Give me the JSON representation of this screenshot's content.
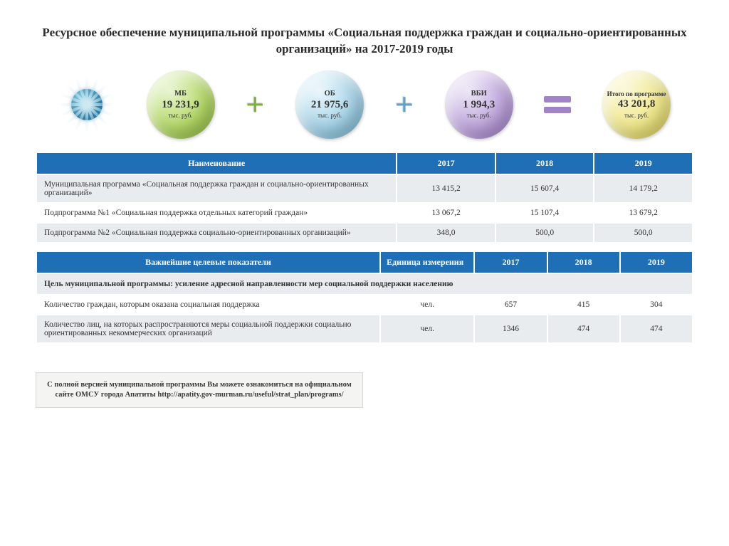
{
  "title": "Ресурсное обеспечение муниципальной программы «Социальная поддержка граждан и социально-ориентированных организаций» на 2017-2019 годы",
  "bubbles": {
    "mb": {
      "label": "МБ",
      "value": "19 231,9",
      "unit": "тыс. руб.",
      "fill": "radial-gradient(circle at 35% 30%, #e6f4cf, #b7da6a 55%, #8ab83a 95%)"
    },
    "ob": {
      "label": "ОБ",
      "value": "21 975,6",
      "unit": "тыс. руб.",
      "fill": "radial-gradient(circle at 35% 30%, #eaf6fb, #a9d6ea 55%, #6fb2cf 95%)"
    },
    "vbi": {
      "label": "ВБИ",
      "value": "1 994,3",
      "unit": "тыс. руб.",
      "fill": "radial-gradient(circle at 35% 30%, #ece6f6, #c2a9df 55%, #9a78c5 95%)"
    },
    "total": {
      "label": "Итого по программе",
      "value": "43 201,8",
      "unit": "тыс. руб.",
      "fill": "radial-gradient(circle at 35% 30%, #fbf7d6, #f1e98e 55%, #d9cd4f 95%)"
    }
  },
  "ops": {
    "plus1": "#7fb338",
    "plus2": "#5ea3c9",
    "eq": "#a183c8"
  },
  "table1": {
    "headers": [
      "Наименование",
      "2017",
      "2018",
      "2019"
    ],
    "rows": [
      {
        "cls": "row-a",
        "name": "Муниципальная программа «Социальная поддержка граждан и социально-ориентированных организаций»",
        "y1": "13 415,2",
        "y2": "15 607,4",
        "y3": "14 179,2"
      },
      {
        "cls": "row-b",
        "name": "Подпрограмма №1 «Социальная поддержка отдельных категорий граждан»",
        "y1": "13 067,2",
        "y2": "15 107,4",
        "y3": "13 679,2"
      },
      {
        "cls": "row-a",
        "name": "Подпрограмма №2 «Социальная поддержка социально-ориентированных организаций»",
        "y1": "348,0",
        "y2": "500,0",
        "y3": "500,0"
      }
    ]
  },
  "table2": {
    "headers": [
      "Важнейшие целевые показатели",
      "Единица измерения",
      "2017",
      "2018",
      "2019"
    ],
    "col_widths": [
      "48%",
      "13%",
      "10%",
      "10%",
      "10%"
    ],
    "goal": "Цель муниципальной программы: усиление адресной направленности мер социальной поддержки населению",
    "rows": [
      {
        "cls": "row-b",
        "name": "Количество граждан, которым оказана социальная поддержка",
        "unit": "чел.",
        "y1": "657",
        "y2": "415",
        "y3": "304"
      },
      {
        "cls": "row-a",
        "name": "Количество лиц, на которых распространяются меры социальной поддержки социально ориентированных некоммерческих организаций",
        "unit": "чел.",
        "y1": "1346",
        "y2": "474",
        "y3": "474"
      }
    ]
  },
  "footer": "С полной версией муниципальной программы Вы можете ознакомиться на официальном сайте ОМСУ города Апатиты http://apatity.gov-murman.ru/useful/strat_plan/programs/"
}
